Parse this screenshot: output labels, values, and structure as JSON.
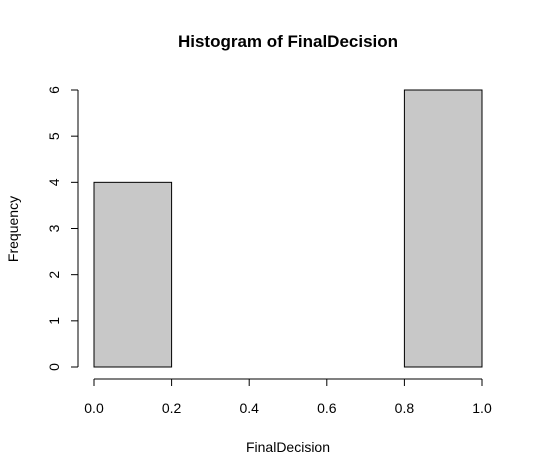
{
  "chart_data": {
    "type": "bar",
    "title": "Histogram of FinalDecision",
    "xlabel": "FinalDecision",
    "ylabel": "Frequency",
    "bins": [
      {
        "start": 0.0,
        "end": 0.2,
        "count": 4
      },
      {
        "start": 0.2,
        "end": 0.4,
        "count": 0
      },
      {
        "start": 0.4,
        "end": 0.6,
        "count": 0
      },
      {
        "start": 0.6,
        "end": 0.8,
        "count": 0
      },
      {
        "start": 0.8,
        "end": 1.0,
        "count": 6
      }
    ],
    "xlim": [
      0.0,
      1.0
    ],
    "ylim": [
      0,
      6
    ],
    "x_ticks": [
      "0.0",
      "0.2",
      "0.4",
      "0.6",
      "0.8",
      "1.0"
    ],
    "y_ticks": [
      "0",
      "1",
      "2",
      "3",
      "4",
      "5",
      "6"
    ],
    "bar_color": "#c8c8c8",
    "grid": false,
    "legend": "none"
  }
}
